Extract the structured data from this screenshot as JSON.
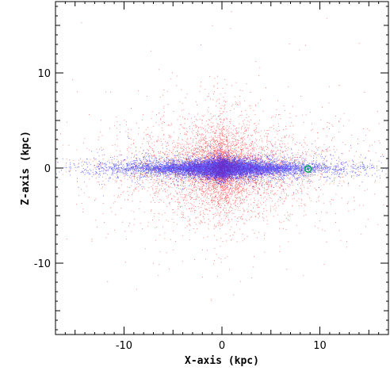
{
  "chart_data": {
    "type": "scatter",
    "title": "",
    "xlabel": "X-axis (kpc)",
    "ylabel": "Z-axis (kpc)",
    "xlim": [
      -17,
      17
    ],
    "ylim": [
      -17.5,
      17.5
    ],
    "x_ticks": [
      -10,
      0,
      10
    ],
    "y_ticks": [
      -10,
      0,
      10
    ],
    "grid": false,
    "legend": "none",
    "series": [
      {
        "color": "#ff0000",
        "distribution": "thick-disk-halo",
        "radial_scale_kpc": 5.5,
        "vertical_scale_kpc": 1.6,
        "halo_fraction": 0.12,
        "halo_scale_kpc": 4.5,
        "points": 6500
      },
      {
        "color": "#0000ff",
        "distribution": "thin-disk",
        "radial_scale_kpc": 5.0,
        "vertical_scale_kpc": 0.28,
        "points": 16000
      }
    ],
    "marker": {
      "x": 8.8,
      "y": -0.1,
      "color": "#00a050",
      "shape": "circle-with-dot"
    }
  }
}
